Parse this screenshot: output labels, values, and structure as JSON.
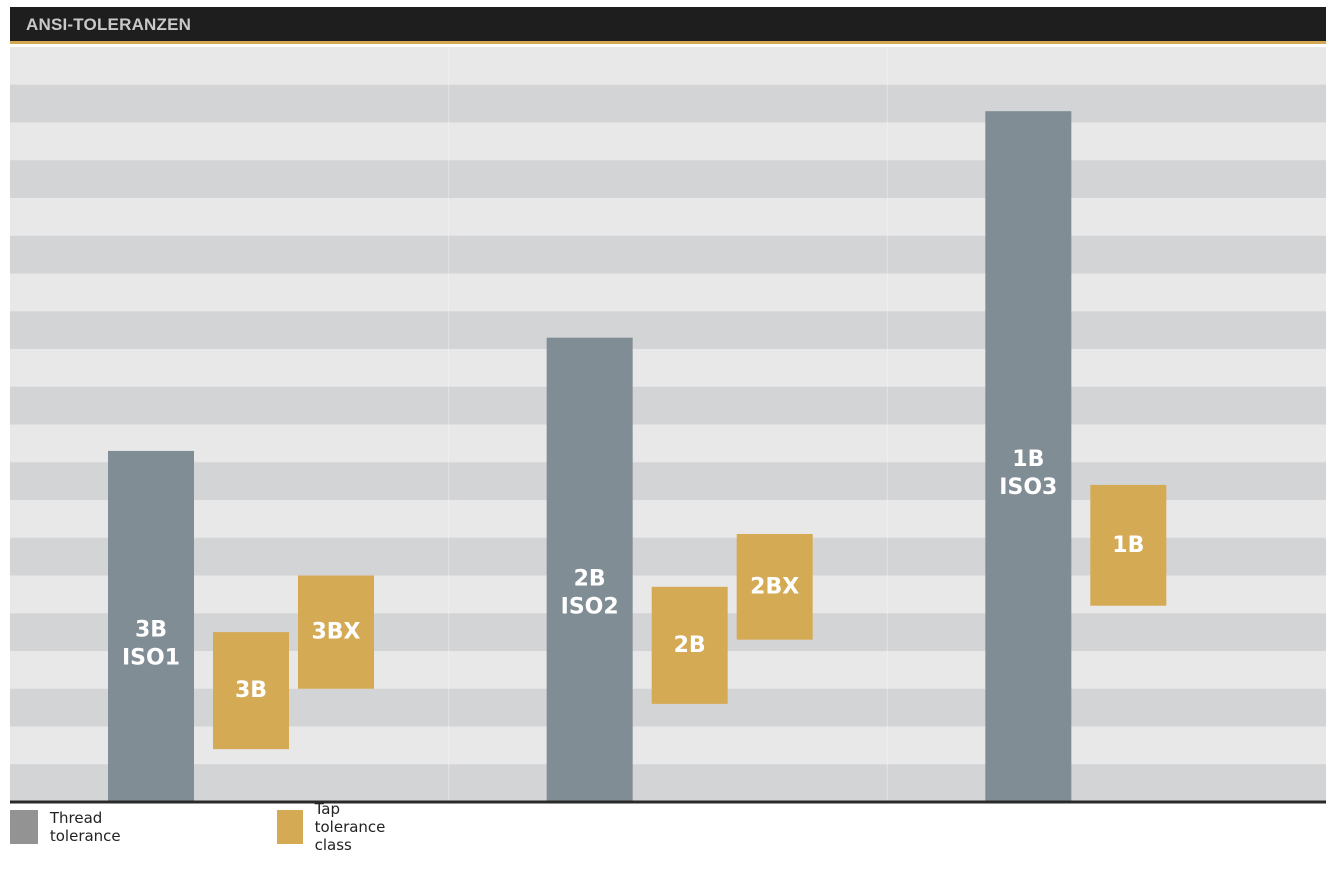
{
  "title": "ANSI-TOLERANZEN",
  "colors": {
    "title_bg": "#1e1e1e",
    "title_accent": "#d2a852",
    "stripe_light": "#e8e8e8",
    "stripe_dark": "#d3d4d6",
    "thread": "#808d95",
    "tap": "#d4aa55",
    "baseline": "#2a2a2a",
    "legend_thread": "#939393"
  },
  "legend": [
    {
      "name": "Thread tolerance",
      "color": "#939393"
    },
    {
      "name": "Tap tolerance class",
      "color": "#d4aa55"
    }
  ],
  "chart_data": {
    "type": "bar",
    "title": "ANSI-TOLERANZEN",
    "xlabel": "",
    "ylabel": "",
    "ylim": [
      0,
      20
    ],
    "grid": "horizontal alternating bands",
    "legend_position": "bottom-left",
    "groups": [
      {
        "thread": {
          "label_lines": [
            "3B",
            "ISO1"
          ],
          "range": [
            0,
            9.3
          ]
        },
        "taps": [
          {
            "label": "3B",
            "range": [
              1.4,
              4.5
            ]
          },
          {
            "label": "3BX",
            "range": [
              3.0,
              6.0
            ]
          }
        ]
      },
      {
        "thread": {
          "label_lines": [
            "2B",
            "ISO2"
          ],
          "range": [
            0,
            12.3
          ]
        },
        "taps": [
          {
            "label": "2B",
            "range": [
              2.6,
              5.7
            ]
          },
          {
            "label": "2BX",
            "range": [
              4.3,
              7.1
            ]
          }
        ]
      },
      {
        "thread": {
          "label_lines": [
            "1B",
            "ISO3"
          ],
          "range": [
            0,
            18.3
          ]
        },
        "taps": [
          {
            "label": "1B",
            "range": [
              5.2,
              8.4
            ]
          }
        ]
      }
    ]
  }
}
